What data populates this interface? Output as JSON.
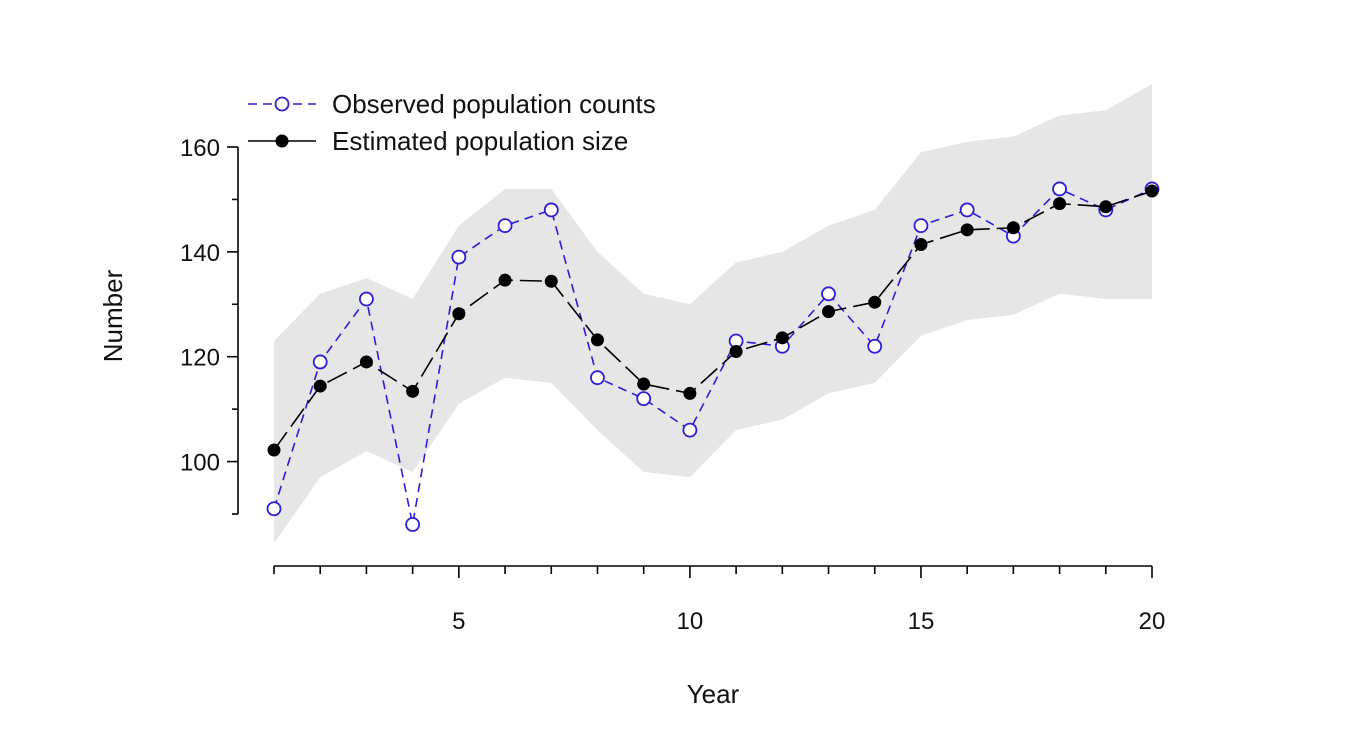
{
  "chart_data": {
    "type": "line",
    "xlabel": "Year",
    "ylabel": "Number",
    "x": [
      1,
      2,
      3,
      4,
      5,
      6,
      7,
      8,
      9,
      10,
      11,
      12,
      13,
      14,
      15,
      16,
      17,
      18,
      19,
      20
    ],
    "xticks": [
      5,
      10,
      15,
      20
    ],
    "xlim": [
      1,
      20
    ],
    "yticks": [
      100,
      120,
      140,
      160
    ],
    "ylim": [
      90,
      160
    ],
    "series": [
      {
        "name": "Observed population counts",
        "values": [
          91,
          119,
          131,
          88,
          139,
          145,
          148,
          116,
          112,
          106,
          123,
          122,
          132,
          122,
          145,
          148,
          143,
          152,
          148,
          152
        ],
        "color": "#2a1ed8",
        "marker": "open-circle",
        "line": "dashed"
      },
      {
        "name": "Estimated population size",
        "values": [
          102.2,
          114.4,
          119,
          113.4,
          128.2,
          134.6,
          134.4,
          123.2,
          114.8,
          113,
          121,
          123.6,
          128.6,
          130.4,
          141.4,
          144.2,
          144.6,
          149.2,
          148.6,
          151.6
        ],
        "color": "#000000",
        "marker": "filled-circle",
        "line": "long-dash"
      }
    ],
    "band": {
      "lower": [
        84.4,
        97,
        102,
        98,
        111,
        116,
        115,
        106,
        98,
        97,
        106,
        108,
        113,
        115,
        124,
        127,
        128,
        132,
        131,
        131
      ],
      "upper": [
        123,
        132,
        135,
        131,
        145,
        152,
        152,
        140,
        132,
        130,
        138,
        140,
        145,
        148,
        159,
        161,
        162,
        166,
        167,
        172
      ],
      "color": "#e6e6e6"
    },
    "legend": {
      "position": "top-left"
    },
    "grid": false
  }
}
